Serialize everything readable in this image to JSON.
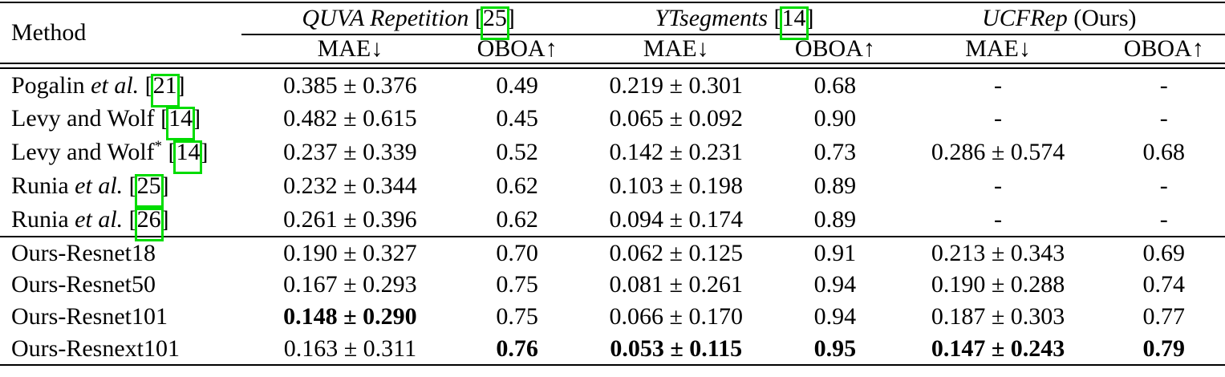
{
  "table": {
    "method_header": "Method",
    "metrics": {
      "mae": "MAE↓",
      "oboa": "OBOA↑"
    },
    "groups": [
      {
        "name": "QUVA Repetition",
        "open": "[",
        "cite": "25",
        "close": "]"
      },
      {
        "name": "YTsegments",
        "open": "[",
        "cite": "14",
        "close": "]"
      },
      {
        "name": "UCFRep",
        "suffix": "(Ours)"
      }
    ],
    "rows": [
      {
        "pre": "Pogalin ",
        "it": "et al.",
        "sup": "",
        "open": "[",
        "cite": "21",
        "close": "]",
        "quva_mae": "0.385 ± 0.376",
        "quva_oboa": "0.49",
        "yt_mae": "0.219 ± 0.301",
        "yt_oboa": "0.68",
        "ucf_mae": "-",
        "ucf_oboa": "-"
      },
      {
        "pre": "Levy and Wolf",
        "it": "",
        "sup": "",
        "open": "[",
        "cite": "14",
        "close": "]",
        "quva_mae": "0.482 ± 0.615",
        "quva_oboa": "0.45",
        "yt_mae": "0.065 ± 0.092",
        "yt_oboa": "0.90",
        "ucf_mae": "-",
        "ucf_oboa": "-"
      },
      {
        "pre": "Levy and Wolf",
        "it": "",
        "sup": "*",
        "open": "[",
        "cite": "14",
        "close": "]",
        "quva_mae": "0.237 ± 0.339",
        "quva_oboa": "0.52",
        "yt_mae": "0.142 ± 0.231",
        "yt_oboa": "0.73",
        "ucf_mae": "0.286 ± 0.574",
        "ucf_oboa": "0.68"
      },
      {
        "pre": "Runia ",
        "it": "et al.",
        "sup": "",
        "open": "[",
        "cite": "25",
        "close": "]",
        "quva_mae": "0.232 ± 0.344",
        "quva_oboa": "0.62",
        "yt_mae": "0.103 ± 0.198",
        "yt_oboa": "0.89",
        "ucf_mae": "-",
        "ucf_oboa": "-"
      },
      {
        "pre": "Runia ",
        "it": "et al.",
        "sup": "",
        "open": "[",
        "cite": "26",
        "close": "]",
        "quva_mae": "0.261 ± 0.396",
        "quva_oboa": "0.62",
        "yt_mae": "0.094 ± 0.174",
        "yt_oboa": "0.89",
        "ucf_mae": "-",
        "ucf_oboa": "-"
      },
      {
        "pre": "Ours-Resnet18",
        "quva_mae": "0.190 ± 0.327",
        "quva_oboa": "0.70",
        "yt_mae": "0.062 ± 0.125",
        "yt_oboa": "0.91",
        "ucf_mae": "0.213 ± 0.343",
        "ucf_oboa": "0.69"
      },
      {
        "pre": "Ours-Resnet50",
        "quva_mae": "0.167 ± 0.293",
        "quva_oboa": "0.75",
        "yt_mae": "0.081 ± 0.261",
        "yt_oboa": "0.94",
        "ucf_mae": "0.190 ± 0.288",
        "ucf_oboa": "0.74"
      },
      {
        "pre": "Ours-Resnet101",
        "quva_mae": "0.148 ± 0.290",
        "quva_oboa": "0.75",
        "yt_mae": "0.066 ± 0.170",
        "yt_oboa": "0.94",
        "ucf_mae": "0.187 ± 0.303",
        "ucf_oboa": "0.77"
      },
      {
        "pre": "Ours-Resnext101",
        "quva_mae": "0.163 ± 0.311",
        "quva_oboa": "0.76",
        "yt_mae": "0.053 ± 0.115",
        "yt_oboa": "0.95",
        "ucf_mae": "0.147 ± 0.243",
        "ucf_oboa": "0.79"
      }
    ]
  },
  "colors": {
    "citation_box": "#00dc00",
    "text": "#000000",
    "background": "#ffffff"
  }
}
